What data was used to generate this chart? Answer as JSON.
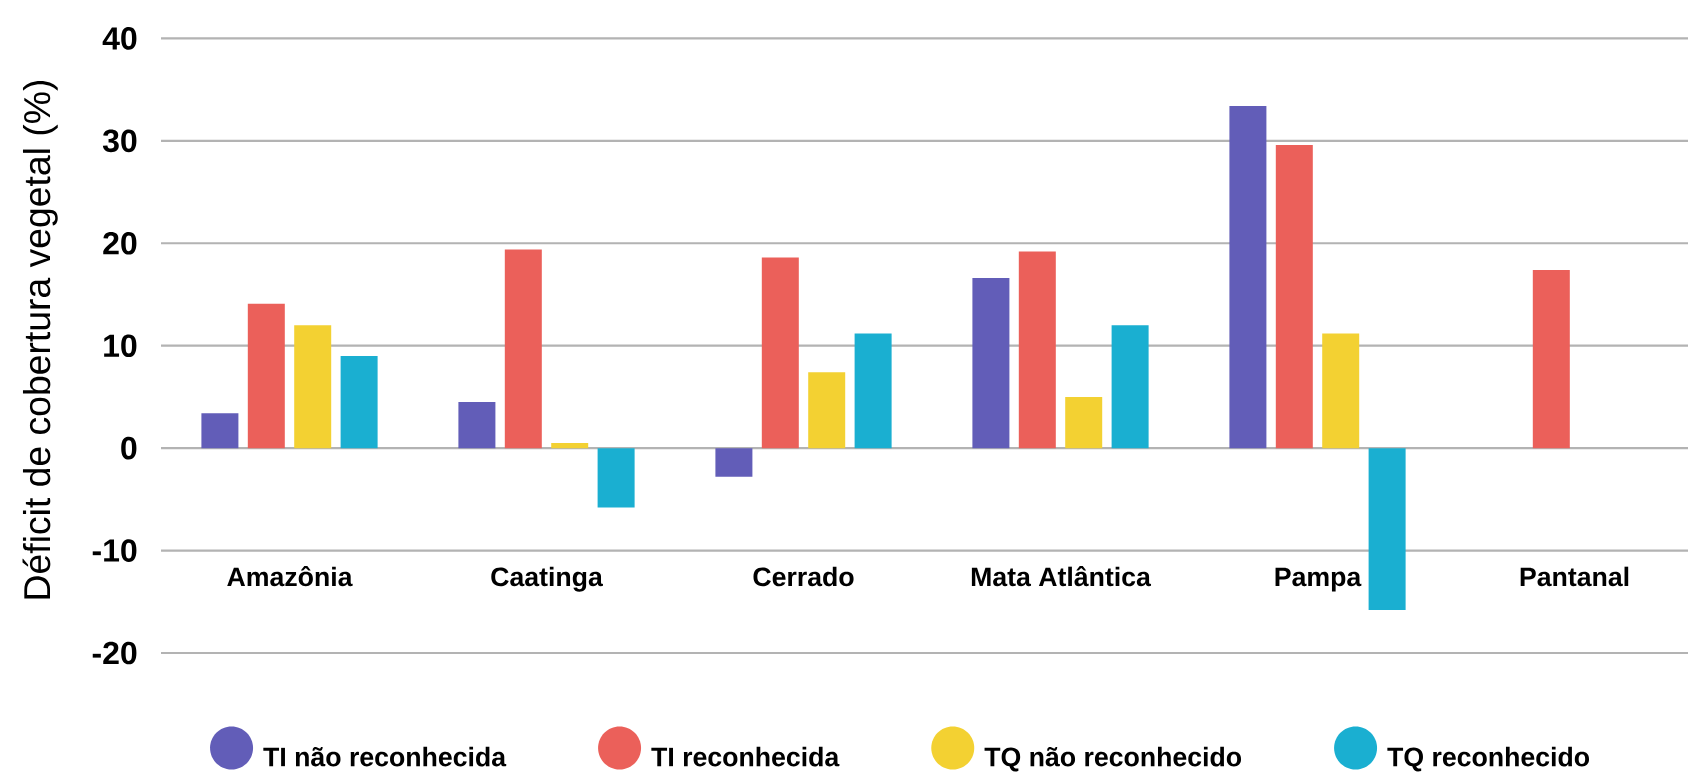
{
  "chart_data": {
    "type": "bar",
    "ylabel": "Déficit de cobertura vegetal (%)",
    "categories": [
      "Amazônia",
      "Caatinga",
      "Cerrado",
      "Mata Atlântica",
      "Pampa",
      "Pantanal"
    ],
    "series": [
      {
        "name": "TI não reconhecida",
        "color": "#625DB8",
        "values": [
          3.4,
          4.5,
          -2.8,
          16.6,
          33.4,
          null
        ]
      },
      {
        "name": "TI reconhecida",
        "color": "#EB605A",
        "values": [
          14.1,
          19.4,
          18.6,
          19.2,
          29.6,
          17.4
        ]
      },
      {
        "name": "TQ não reconhecido",
        "color": "#F3D132",
        "values": [
          12.0,
          0.5,
          7.4,
          5.0,
          11.2,
          null
        ]
      },
      {
        "name": "TQ reconhecido",
        "color": "#1AAFD1",
        "values": [
          9.0,
          -5.8,
          11.2,
          12.0,
          -15.8,
          null
        ]
      }
    ],
    "ylim": [
      -20,
      40
    ],
    "yticks": [
      -20,
      -10,
      0,
      10,
      20,
      30,
      40
    ],
    "grid": "y",
    "legend": "bottom"
  }
}
